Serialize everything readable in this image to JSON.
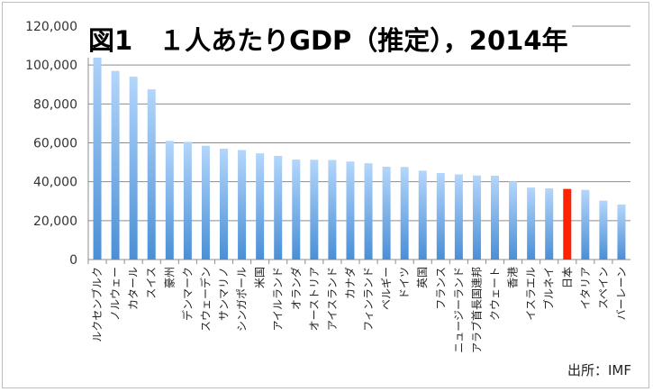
{
  "chart_data": {
    "type": "bar",
    "title": "図1　１人あたりGDP（推定），2014年",
    "source": "出所：IMF",
    "xlabel": "",
    "ylabel": "",
    "ylim": [
      0,
      120000
    ],
    "yticks": [
      "0",
      "20,000",
      "40,000",
      "60,000",
      "80,000",
      "100,000",
      "120,000"
    ],
    "grid": true,
    "categories": [
      "ルクセンブルク",
      "ノルウェー",
      "カタール",
      "スイス",
      "豪州",
      "デンマーク",
      "スウェーデン",
      "サンマリノ",
      "シンガポール",
      "米国",
      "アイルランド",
      "オランダ",
      "オーストリア",
      "アイスランド",
      "カナダ",
      "フィンランド",
      "ベルギー",
      "ドイツ",
      "英国",
      "フランス",
      "ニュージーランド",
      "アラブ首長国連邦",
      "クウェート",
      "香港",
      "イスラエル",
      "ブルネイ",
      "日本",
      "イタリア",
      "スペイン",
      "バーレーン"
    ],
    "values": [
      111000,
      97000,
      94000,
      87500,
      61000,
      60500,
      58500,
      57000,
      56300,
      54600,
      53300,
      51400,
      51300,
      51200,
      50400,
      49500,
      47700,
      47600,
      45700,
      44500,
      43800,
      43200,
      43100,
      40100,
      37000,
      36600,
      36300,
      35800,
      30300,
      28300
    ],
    "highlight": "日本",
    "colors": {
      "bar": "#5b9bd5",
      "bar_light": "#a9cdf5",
      "highlight": "#ff2200",
      "grid": "#8c8c8c"
    }
  }
}
